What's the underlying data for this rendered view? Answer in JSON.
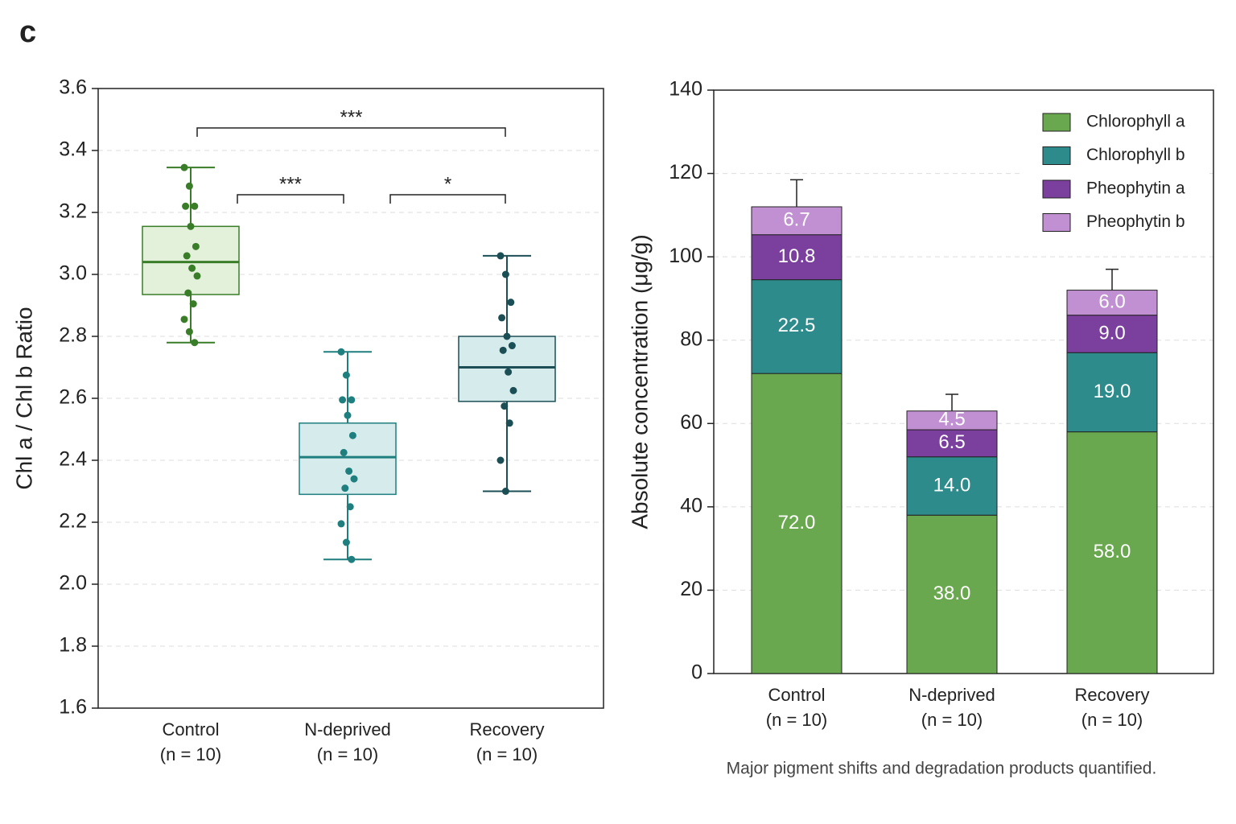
{
  "panel_label": "c",
  "chart_data": [
    {
      "type": "box",
      "ylabel": "Chl a / Chl b Ratio",
      "categories": [
        "Control",
        "N-deprived",
        "Recovery"
      ],
      "sublabels": [
        "(n = 10)",
        "(n = 10)",
        "(n = 10)"
      ],
      "ylim": [
        1.6,
        3.6
      ],
      "yticks": [
        1.6,
        1.8,
        {
          "value": 2,
          "label": "2.0"
        },
        2.2,
        2.4,
        2.6,
        2.8,
        {
          "value": 3,
          "label": "3.0"
        },
        3.2,
        3.4,
        3.6
      ],
      "grid": true,
      "boxes": [
        {
          "color": "#3a7d28",
          "fill": "#e3f0da",
          "whisker_low": 2.78,
          "q1": 2.935,
          "median": 3.04,
          "q3": 3.155,
          "whisker_high": 3.345,
          "points": [
            3.345,
            3.285,
            3.22,
            3.22,
            3.155,
            3.09,
            3.06,
            3.02,
            2.995,
            2.94,
            2.905,
            2.855,
            2.815,
            2.78
          ]
        },
        {
          "color": "#1f7f7f",
          "fill": "#d6ecec",
          "whisker_low": 2.08,
          "q1": 2.29,
          "median": 2.41,
          "q3": 2.52,
          "whisker_high": 2.75,
          "points": [
            2.75,
            2.675,
            2.595,
            2.595,
            2.545,
            2.48,
            2.425,
            2.365,
            2.34,
            2.31,
            2.25,
            2.195,
            2.135,
            2.08
          ]
        },
        {
          "color": "#1b4f55",
          "fill": "#d6ecec",
          "whisker_low": 2.3,
          "q1": 2.59,
          "median": 2.7,
          "q3": 2.8,
          "whisker_high": 3.06,
          "points": [
            3.06,
            3.0,
            2.91,
            2.86,
            2.8,
            2.77,
            2.755,
            2.685,
            2.625,
            2.575,
            2.52,
            2.4,
            2.3
          ]
        }
      ],
      "significance": [
        {
          "between": [
            0,
            2
          ],
          "label": "***"
        },
        {
          "between": [
            0,
            1
          ],
          "label": "***"
        },
        {
          "between": [
            1,
            2
          ],
          "label": "*"
        }
      ]
    },
    {
      "type": "stacked_bar",
      "ylabel": "Absolute concentration (μg/g)",
      "categories": [
        "Control",
        "N-deprived",
        "Recovery"
      ],
      "sublabels": [
        "(n = 10)",
        "(n = 10)",
        "(n = 10)"
      ],
      "ylim": [
        0,
        140
      ],
      "yticks": [
        0,
        20,
        40,
        60,
        80,
        100,
        120,
        140
      ],
      "grid": true,
      "legend": "upper right",
      "series": [
        {
          "name": "Chlorophyll a",
          "color": "#6aa84f",
          "values": [
            72,
            38,
            58
          ],
          "value_labels": [
            "72.0",
            "38.0",
            "58.0"
          ]
        },
        {
          "name": "Chlorophyll b",
          "color": "#2e8b8b",
          "values": [
            22.5,
            14,
            19
          ],
          "value_labels": [
            "22.5",
            "14.0",
            "19.0"
          ]
        },
        {
          "name": "Pheophytin a",
          "color": "#7b3f9e",
          "values": [
            10.8,
            6.5,
            9.0
          ],
          "value_labels": [
            "10.8",
            "6.5",
            "9.0"
          ]
        },
        {
          "name": "Pheophytin b",
          "color": "#c190d2",
          "values": [
            6.7,
            4.5,
            6.0
          ],
          "value_labels": [
            "6.7",
            "4.5",
            "6.0"
          ]
        }
      ],
      "errors": [
        6.5,
        4,
        5
      ],
      "caption": "Major pigment shifts and degradation products quantified."
    }
  ]
}
